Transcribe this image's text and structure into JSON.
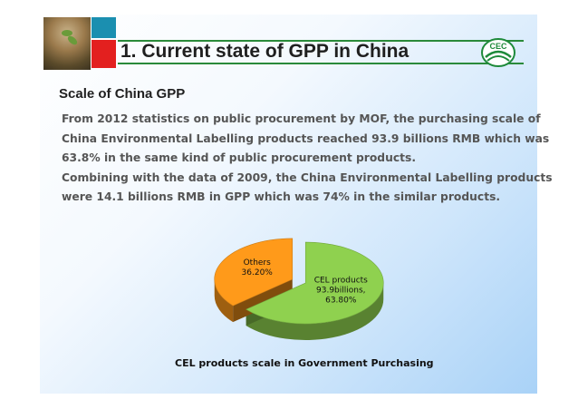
{
  "header": {
    "title": "1. Current state of GPP in China",
    "logo_text": "CEC"
  },
  "subtitle": "Scale of China GPP",
  "paragraph_lines": [
    "From 2012 statistics on public procurement by MOF, the purchasing scale of",
    "China Environmental Labelling products reached 93.9 billions RMB which was",
    "63.8% in the same kind of public procurement products.",
    "Combining with the data of 2009, the China Environmental Labelling products",
    "were 14.1 billions RMB in GPP which was 74% in the similar products."
  ],
  "chart_data": {
    "type": "pie",
    "style": "3d-exploded",
    "title": "CEL products scale in Government Purchasing",
    "slices": [
      {
        "name": "CEL products",
        "value": 63.8,
        "label_lines": [
          "CEL products",
          "93.9billions,",
          "63.80%"
        ],
        "color": "#8fd14f"
      },
      {
        "name": "Others",
        "value": 36.2,
        "label_lines": [
          "Others",
          "36.20%"
        ],
        "color": "#ff9a1a"
      }
    ]
  },
  "colors": {
    "accent_green": "#2a8a3a",
    "accent_red": "#e3201f",
    "accent_teal": "#1b8fb0"
  }
}
